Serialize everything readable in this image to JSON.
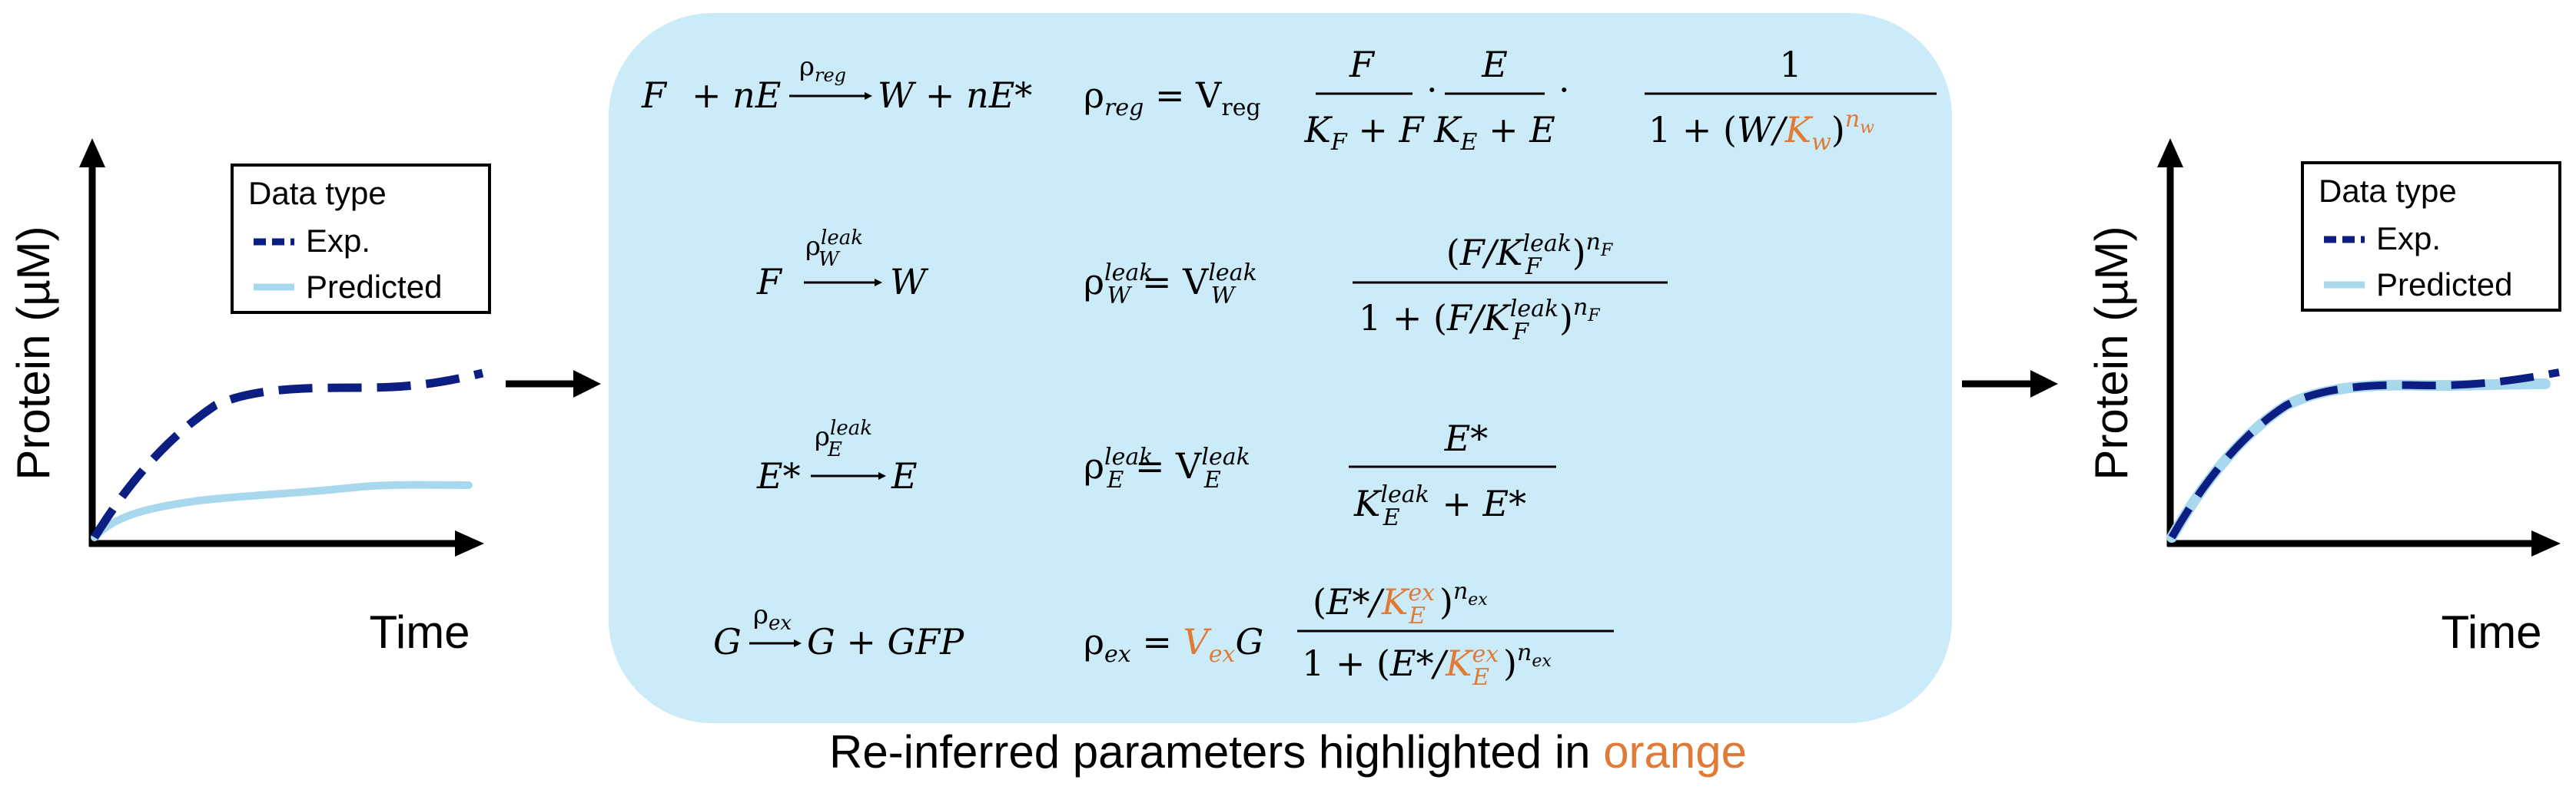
{
  "left_plot": {
    "y_axis_label": "Protein (µM)",
    "x_axis_label": "Time",
    "legend_title": "Data type",
    "legend_items": [
      {
        "label": "Exp.",
        "color": "#0d1e82",
        "style": "dashed"
      },
      {
        "label": "Predicted",
        "color": "#a8d8ee",
        "style": "solid"
      }
    ]
  },
  "right_plot": {
    "y_axis_label": "Protein (µM)",
    "x_axis_label": "Time",
    "legend_title": "Data type",
    "legend_items": [
      {
        "label": "Exp.",
        "color": "#0d1e82",
        "style": "dashed"
      },
      {
        "label": "Predicted",
        "color": "#a8d8ee",
        "style": "solid"
      }
    ]
  },
  "colors": {
    "panel": "#cbebf8",
    "highlight": "#e07a36",
    "exp": "#0d1e82",
    "predicted": "#a8d8ee"
  },
  "caption": {
    "prefix": "Re-inferred parameters highlighted in ",
    "highlight": "orange"
  }
}
